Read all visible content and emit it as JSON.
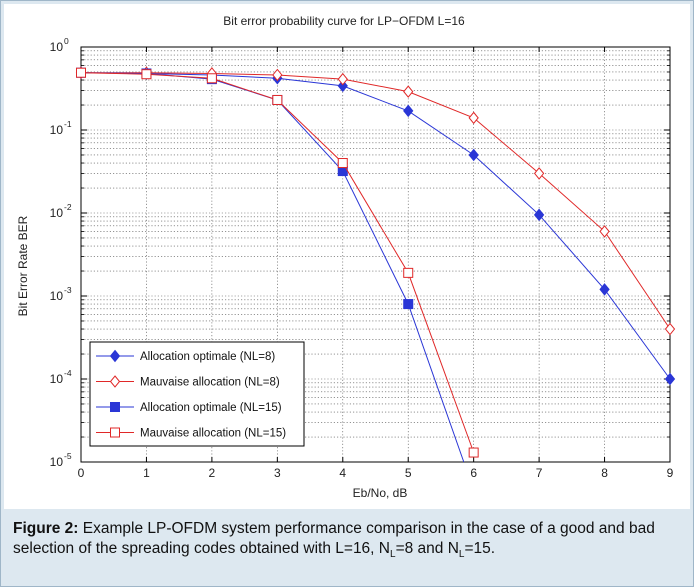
{
  "chart_data": {
    "type": "line",
    "title": "Bit error probability curve for LP−OFDM L=16",
    "xlabel": "Eb/No, dB",
    "ylabel": "Bit Error Rate BER",
    "xlim": [
      0,
      9
    ],
    "ylim": [
      1e-05,
      1
    ],
    "yscale": "log",
    "grid": true,
    "legend_position": "bottom-left",
    "x_ticks": [
      "0",
      "1",
      "2",
      "3",
      "4",
      "5",
      "6",
      "7",
      "8",
      "9"
    ],
    "y_ticks": [
      {
        "base": "10",
        "exp": "0",
        "value": 1
      },
      {
        "base": "10",
        "exp": "-1",
        "value": 0.1
      },
      {
        "base": "10",
        "exp": "-2",
        "value": 0.01
      },
      {
        "base": "10",
        "exp": "-3",
        "value": 0.001
      },
      {
        "base": "10",
        "exp": "-4",
        "value": 0.0001
      },
      {
        "base": "10",
        "exp": "-5",
        "value": 1e-05
      }
    ],
    "series": [
      {
        "name": "Allocation optimale (NL=8)",
        "color": "#2a36d6",
        "marker": "diamond-filled",
        "x": [
          0,
          1,
          2,
          3,
          4,
          5,
          6,
          7,
          8,
          9
        ],
        "y": [
          0.49,
          0.48,
          0.46,
          0.42,
          0.34,
          0.17,
          0.05,
          0.0095,
          0.0012,
          0.0001
        ]
      },
      {
        "name": "Mauvaise allocation (NL=8)",
        "color": "#e02828",
        "marker": "diamond-open",
        "x": [
          0,
          1,
          2,
          3,
          4,
          5,
          6,
          7,
          8,
          9
        ],
        "y": [
          0.49,
          0.49,
          0.48,
          0.46,
          0.41,
          0.29,
          0.14,
          0.03,
          0.006,
          0.0004
        ]
      },
      {
        "name": "Allocation optimale (NL=15)",
        "color": "#2a36d6",
        "marker": "square-filled",
        "x": [
          0,
          1,
          2,
          3,
          4,
          5,
          5.85
        ],
        "y": [
          0.49,
          0.48,
          0.41,
          0.23,
          0.032,
          0.0008,
          1e-05
        ],
        "marker_count": 6
      },
      {
        "name": "Mauvaise allocation (NL=15)",
        "color": "#e02828",
        "marker": "square-open",
        "x": [
          0,
          1,
          2,
          3,
          4,
          5,
          6
        ],
        "y": [
          0.49,
          0.47,
          0.42,
          0.23,
          0.04,
          0.0019,
          1.3e-05
        ]
      }
    ]
  },
  "caption": {
    "label": "Figure 2:",
    "text_1": " Example LP-OFDM system performance comparison in the case of a good and bad selection of the spreading codes obtained with L=16, N",
    "sub_1": "L",
    "text_2": "=8 and N",
    "sub_2": "L",
    "text_3": "=15."
  }
}
